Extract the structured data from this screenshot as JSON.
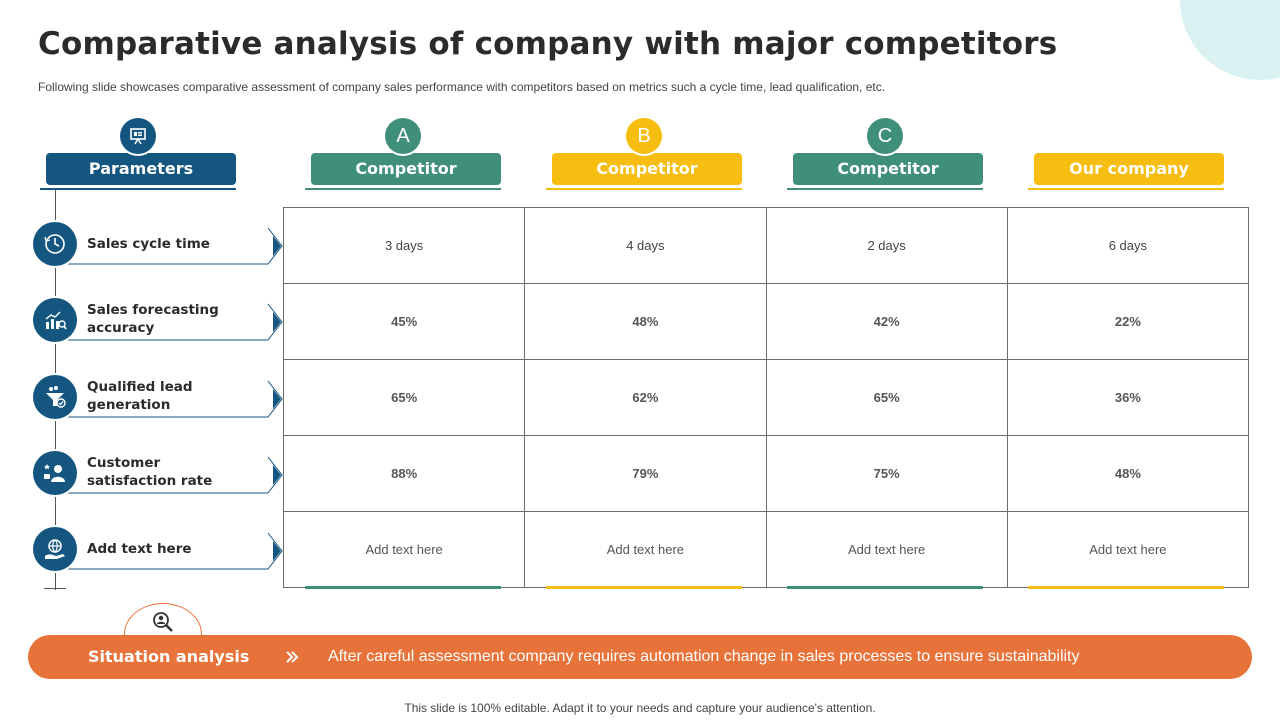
{
  "title": "Comparative analysis of company with major competitors",
  "subtitle": "Following slide showcases comparative assessment of company sales performance with competitors based on metrics such a cycle time, lead qualification, etc.",
  "colors": {
    "navy": "#145680",
    "teal": "#3f8f7b",
    "yellow": "#f7bd10",
    "orange": "#e8733a"
  },
  "parameters_header": {
    "label": "Parameters",
    "icon": "presentation-icon"
  },
  "columns": [
    {
      "badge": "A",
      "label": "Competitor",
      "color": "teal"
    },
    {
      "badge": "B",
      "label": "Competitor",
      "color": "yellow"
    },
    {
      "badge": "C",
      "label": "Competitor",
      "color": "teal"
    },
    {
      "badge": "",
      "label": "Our company",
      "color": "yellow"
    }
  ],
  "parameters": [
    {
      "label": "Sales cycle time",
      "icon": "cycle-icon"
    },
    {
      "label": "Sales forecasting accuracy",
      "icon": "bar-chart-icon"
    },
    {
      "label": "Qualified lead generation",
      "icon": "funnel-icon"
    },
    {
      "label": "Customer satisfaction rate",
      "icon": "customer-icon"
    },
    {
      "label": "Add text here",
      "icon": "globe-hand-icon"
    }
  ],
  "rows": [
    [
      "3 days",
      "4 days",
      "2 days",
      "6 days"
    ],
    [
      "45%",
      "48%",
      "42%",
      "22%"
    ],
    [
      "65%",
      "62%",
      "65%",
      "36%"
    ],
    [
      "88%",
      "79%",
      "75%",
      "48%"
    ],
    [
      "Add text here",
      "Add text here",
      "Add text here",
      "Add text here"
    ]
  ],
  "situation": {
    "title": "Situation analysis",
    "text": "After careful assessment company requires automation change in sales processes to ensure sustainability",
    "icon": "magnifier-person-icon"
  },
  "footer": "This slide is 100% editable. Adapt it to your needs and capture your audience's attention."
}
